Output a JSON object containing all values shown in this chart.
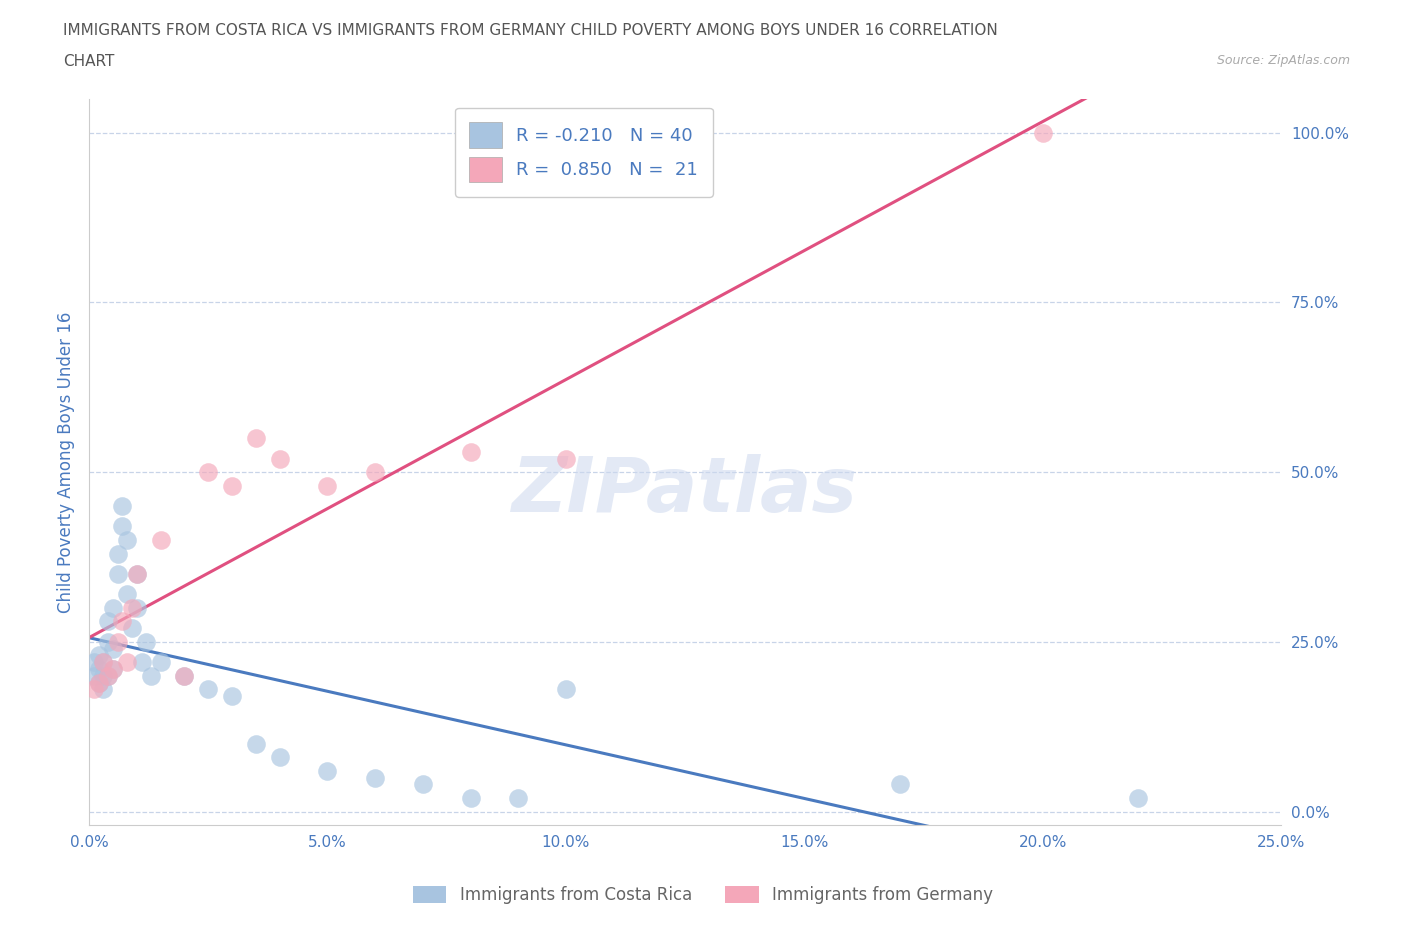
{
  "title_line1": "IMMIGRANTS FROM COSTA RICA VS IMMIGRANTS FROM GERMANY CHILD POVERTY AMONG BOYS UNDER 16 CORRELATION",
  "title_line2": "CHART",
  "source_text": "Source: ZipAtlas.com",
  "ylabel": "Child Poverty Among Boys Under 16",
  "xlim": [
    0.0,
    0.25
  ],
  "ylim": [
    -0.02,
    1.05
  ],
  "x_ticks": [
    0.0,
    0.05,
    0.1,
    0.15,
    0.2,
    0.25
  ],
  "x_tick_labels": [
    "0.0%",
    "5.0%",
    "10.0%",
    "15.0%",
    "20.0%",
    "25.0%"
  ],
  "y_ticks_right": [
    0.0,
    0.25,
    0.5,
    0.75,
    1.0
  ],
  "y_tick_labels_right": [
    "0.0%",
    "25.0%",
    "50.0%",
    "75.0%",
    "100.0%"
  ],
  "color_cr": "#a8c4e0",
  "color_de": "#f4a7b9",
  "line_color_cr": "#4a7abf",
  "line_color_de": "#e05080",
  "R_cr": -0.21,
  "N_cr": 40,
  "R_de": 0.85,
  "N_de": 21,
  "legend_label_cr": "Immigrants from Costa Rica",
  "legend_label_de": "Immigrants from Germany",
  "watermark": "ZIPatlas",
  "scatter_cr_x": [
    0.001,
    0.001,
    0.002,
    0.002,
    0.002,
    0.003,
    0.003,
    0.003,
    0.004,
    0.004,
    0.004,
    0.005,
    0.005,
    0.005,
    0.006,
    0.006,
    0.007,
    0.007,
    0.008,
    0.008,
    0.009,
    0.01,
    0.01,
    0.011,
    0.012,
    0.013,
    0.015,
    0.02,
    0.025,
    0.03,
    0.035,
    0.04,
    0.05,
    0.06,
    0.07,
    0.08,
    0.09,
    0.1,
    0.17,
    0.22
  ],
  "scatter_cr_y": [
    0.2,
    0.22,
    0.19,
    0.21,
    0.23,
    0.18,
    0.2,
    0.22,
    0.2,
    0.25,
    0.28,
    0.21,
    0.24,
    0.3,
    0.35,
    0.38,
    0.42,
    0.45,
    0.4,
    0.32,
    0.27,
    0.3,
    0.35,
    0.22,
    0.25,
    0.2,
    0.22,
    0.2,
    0.18,
    0.17,
    0.1,
    0.08,
    0.06,
    0.05,
    0.04,
    0.02,
    0.02,
    0.18,
    0.04,
    0.02
  ],
  "scatter_de_x": [
    0.001,
    0.002,
    0.003,
    0.004,
    0.005,
    0.006,
    0.007,
    0.008,
    0.009,
    0.01,
    0.015,
    0.02,
    0.025,
    0.03,
    0.035,
    0.04,
    0.05,
    0.06,
    0.08,
    0.1,
    0.2
  ],
  "scatter_de_y": [
    0.18,
    0.19,
    0.22,
    0.2,
    0.21,
    0.25,
    0.28,
    0.22,
    0.3,
    0.35,
    0.4,
    0.2,
    0.5,
    0.48,
    0.55,
    0.52,
    0.48,
    0.5,
    0.53,
    0.52,
    1.0
  ],
  "background_color": "#ffffff",
  "grid_color": "#c8d4e8",
  "title_color": "#555555",
  "axis_label_color": "#4a7abf",
  "tick_color": "#4a7abf",
  "source_color": "#aaaaaa"
}
